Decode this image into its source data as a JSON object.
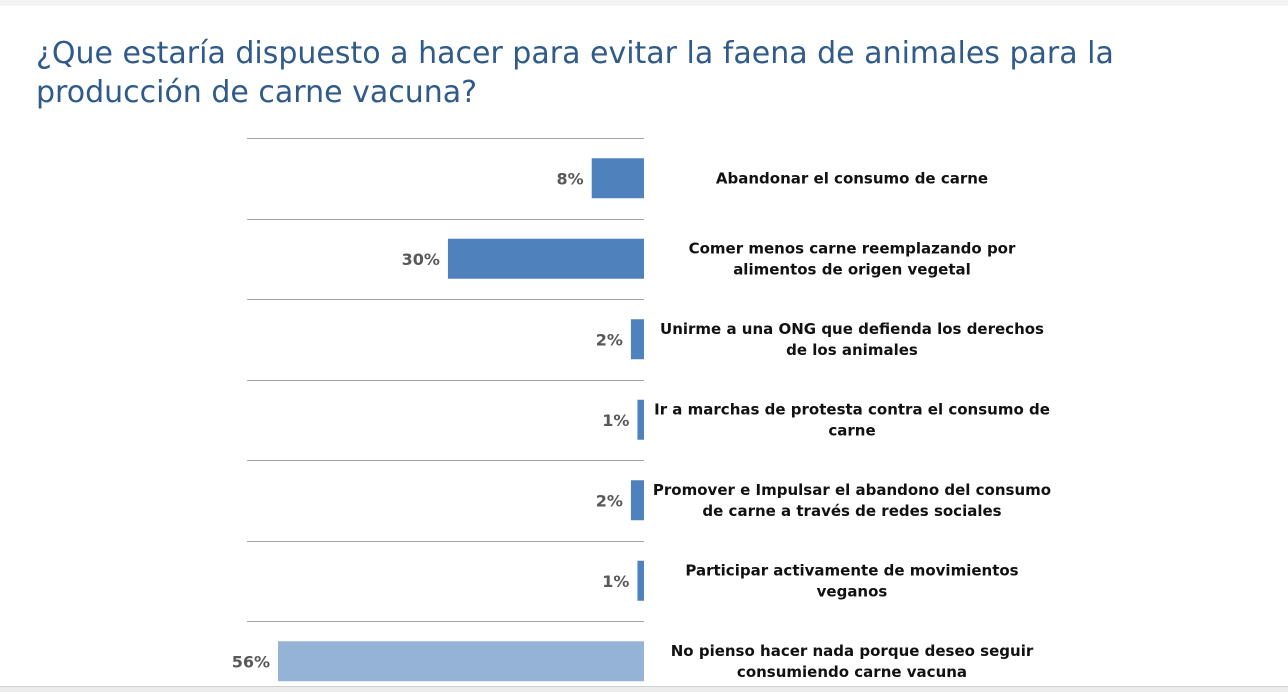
{
  "title": "¿Que estaría dispuesto a hacer para evitar la faena de animales para la producción de carne vacuna?",
  "colors": {
    "title": "#2f5a8a",
    "bar_primary": "#4f81bd",
    "bar_highlight": "#95b3d7",
    "grid": "#a6a6a6",
    "data_label": "#595959"
  },
  "chart_data": {
    "type": "bar",
    "orientation": "horizontal",
    "direction": "right-to-left",
    "title": "¿Que estaría dispuesto a hacer para evitar la faena de animales para la producción de carne vacuna?",
    "xlabel": "",
    "ylabel": "",
    "xlim": [
      0,
      56
    ],
    "grid": true,
    "legend": "none",
    "unit": "%",
    "categories": [
      [
        "Abandonar el consumo de carne"
      ],
      [
        "Comer menos carne reemplazando por",
        "alimentos de origen vegetal"
      ],
      [
        "Unirme a una ONG que defienda los derechos",
        "de los animales"
      ],
      [
        "Ir a marchas de protesta contra el consumo de",
        "carne"
      ],
      [
        "Promover e Impulsar el abandono del consumo",
        "de carne a través de redes sociales"
      ],
      [
        "Participar activamente de movimientos",
        "veganos"
      ],
      [
        "No pienso hacer nada porque deseo seguir",
        "consumiendo carne vacuna"
      ]
    ],
    "values": [
      8,
      30,
      2,
      1,
      2,
      1,
      56
    ],
    "value_labels": [
      "8%",
      "30%",
      "2%",
      "1%",
      "2%",
      "1%",
      "56%"
    ],
    "highlight_index": 6
  }
}
